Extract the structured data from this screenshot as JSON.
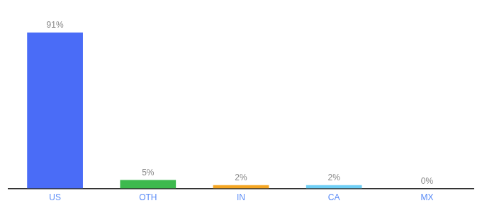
{
  "chart_data": {
    "type": "bar",
    "categories": [
      "US",
      "OTH",
      "IN",
      "CA",
      "MX"
    ],
    "values": [
      91,
      5,
      2,
      2,
      0
    ],
    "value_labels": [
      "91%",
      "5%",
      "2%",
      "2%",
      "0%"
    ],
    "colors": [
      "#4a6cf7",
      "#3dba4e",
      "#f5a623",
      "#6ecff6",
      "#6ecff6"
    ],
    "ylim": [
      0,
      100
    ],
    "grid": false,
    "data_labels": true,
    "tick_labels": "x"
  }
}
